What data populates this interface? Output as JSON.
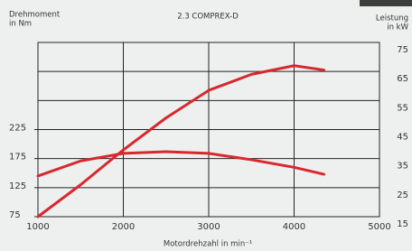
{
  "chart_data": {
    "type": "line",
    "title": "2.3 COMPREX-D",
    "y_label": [
      "Drehmoment",
      "in Nm"
    ],
    "y2_label": [
      "Leistung",
      "in kW"
    ],
    "x_label": "Motordrehzahl in min⁻¹",
    "x": [
      1000,
      1500,
      2000,
      2500,
      3000,
      3500,
      4000,
      4350
    ],
    "xlim": [
      1000,
      5000
    ],
    "xticks": [
      1000,
      2000,
      3000,
      4000,
      5000
    ],
    "ylim": [
      75,
      375
    ],
    "yticks": [
      75,
      125,
      175,
      225
    ],
    "y2lim": [
      15,
      75
    ],
    "y2ticks": [
      15,
      25,
      35,
      45,
      55,
      65,
      75
    ],
    "grid": true,
    "series": [
      {
        "color": "#d8282e",
        "values": [
          145,
          171,
          184,
          187,
          184,
          173,
          160,
          148
        ]
      },
      {
        "color": "#d8282e",
        "axis": "y2",
        "values": [
          15,
          26,
          38,
          49,
          58.5,
          64,
          67,
          65.5
        ]
      }
    ]
  }
}
